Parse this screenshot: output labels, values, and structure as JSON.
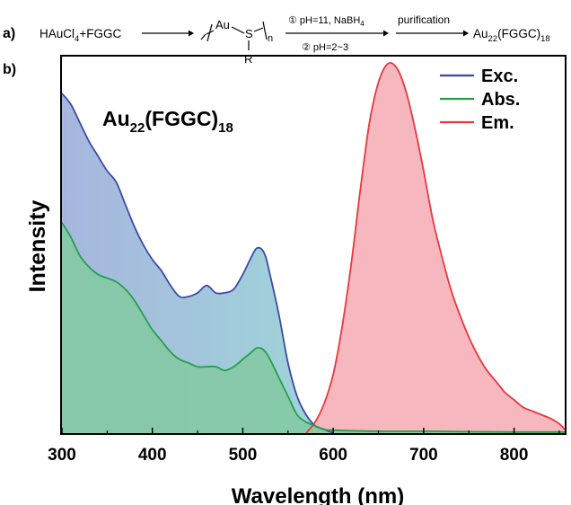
{
  "scheme": {
    "panel_label": "a)",
    "reactant": "HAuCl",
    "reactant_sub": "4",
    "reactant_tail": "+FGGC",
    "polymer_metal": "Au",
    "polymer_s": "S",
    "polymer_r": "R",
    "polymer_n": "n",
    "step1_prefix": "① pH=11, NaBH",
    "step1_sub": "4",
    "step2": "② pH=2~3",
    "step3": "purification",
    "product_base": "Au",
    "product_sub1": "22",
    "product_mid": "(FGGC)",
    "product_sub2": "18"
  },
  "colors": {
    "exc": "#3b4aa8",
    "abs": "#22a04a",
    "em": "#e8383e",
    "exc_fill": "#a7b6de",
    "abs_fill": "#84c9a4",
    "em_fill": "#f7b7bf"
  },
  "chart_data": {
    "type": "area",
    "panel_label": "b)",
    "annotation_base": "Au",
    "annotation_sub1": "22",
    "annotation_mid": "(FGGC)",
    "annotation_sub2": "18",
    "xlabel": "Wavelength (nm)",
    "ylabel": "Intensity",
    "xlim": [
      300,
      856
    ],
    "ylim": [
      0,
      1.02
    ],
    "xticks": [
      300,
      400,
      500,
      600,
      700,
      800
    ],
    "grid": false,
    "legend_position": "top-right",
    "series": [
      {
        "name": "Exc.",
        "x": [
          300,
          310,
          320,
          330,
          340,
          350,
          360,
          370,
          380,
          390,
          400,
          410,
          420,
          430,
          440,
          450,
          460,
          470,
          480,
          490,
          500,
          510,
          515,
          520,
          525,
          530,
          540,
          550,
          560,
          570,
          580,
          590,
          600
        ],
        "y": [
          0.92,
          0.89,
          0.84,
          0.79,
          0.75,
          0.71,
          0.68,
          0.62,
          0.56,
          0.51,
          0.47,
          0.44,
          0.4,
          0.37,
          0.37,
          0.38,
          0.4,
          0.38,
          0.38,
          0.39,
          0.43,
          0.48,
          0.5,
          0.5,
          0.48,
          0.43,
          0.32,
          0.19,
          0.1,
          0.05,
          0.02,
          0.01,
          0.0
        ]
      },
      {
        "name": "Abs.",
        "x": [
          300,
          310,
          320,
          330,
          340,
          350,
          360,
          370,
          380,
          390,
          400,
          410,
          420,
          430,
          440,
          450,
          460,
          470,
          480,
          490,
          500,
          510,
          515,
          520,
          525,
          530,
          540,
          550,
          560,
          570,
          580,
          590,
          600,
          650,
          700,
          750,
          800,
          856
        ],
        "y": [
          0.57,
          0.53,
          0.48,
          0.45,
          0.43,
          0.42,
          0.41,
          0.39,
          0.36,
          0.32,
          0.28,
          0.25,
          0.22,
          0.2,
          0.19,
          0.18,
          0.18,
          0.18,
          0.17,
          0.18,
          0.2,
          0.22,
          0.23,
          0.23,
          0.22,
          0.2,
          0.15,
          0.1,
          0.05,
          0.03,
          0.02,
          0.01,
          0.008,
          0.005,
          0.005,
          0.004,
          0.003,
          0.003
        ]
      },
      {
        "name": "Em.",
        "x": [
          570,
          580,
          590,
          600,
          610,
          620,
          630,
          640,
          650,
          660,
          670,
          680,
          690,
          700,
          710,
          720,
          730,
          740,
          750,
          760,
          770,
          780,
          790,
          800,
          810,
          820,
          830,
          840,
          850,
          856
        ],
        "y": [
          0.0,
          0.03,
          0.08,
          0.16,
          0.29,
          0.46,
          0.66,
          0.84,
          0.95,
          1.0,
          0.99,
          0.93,
          0.83,
          0.71,
          0.58,
          0.48,
          0.39,
          0.32,
          0.26,
          0.21,
          0.17,
          0.14,
          0.11,
          0.09,
          0.07,
          0.06,
          0.05,
          0.04,
          0.025,
          0.01
        ]
      }
    ]
  }
}
